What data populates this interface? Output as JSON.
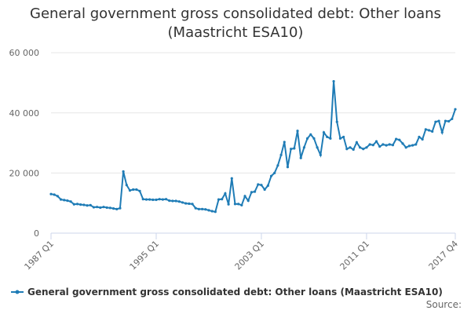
{
  "chart_data": {
    "type": "line",
    "title": "General government gross consolidated debt: Other loans (Maastricht ESA10)",
    "categories": [
      "1987 Q1",
      null,
      null,
      null,
      null,
      null,
      null,
      null,
      null,
      null,
      null,
      null,
      null,
      null,
      null,
      null,
      null,
      null,
      null,
      null,
      null,
      null,
      null,
      null,
      null,
      null,
      null,
      null,
      null,
      null,
      null,
      null,
      "1995 Q1",
      null,
      null,
      null,
      null,
      null,
      null,
      null,
      null,
      null,
      null,
      null,
      null,
      null,
      null,
      null,
      null,
      null,
      null,
      null,
      null,
      null,
      null,
      null,
      null,
      null,
      null,
      null,
      null,
      null,
      null,
      null,
      "2003 Q1",
      null,
      null,
      null,
      null,
      null,
      null,
      null,
      null,
      null,
      null,
      null,
      null,
      null,
      null,
      null,
      null,
      null,
      null,
      null,
      null,
      null,
      null,
      null,
      null,
      null,
      null,
      null,
      null,
      null,
      null,
      null,
      "2011 Q1",
      null,
      null,
      null,
      null,
      null,
      null,
      null,
      null,
      null,
      null,
      null,
      null,
      null,
      null,
      null,
      null,
      null,
      null,
      null,
      null,
      null,
      null,
      null,
      null,
      null,
      null,
      "2017 Q4"
    ],
    "series": [
      {
        "name": "General government gross consolidated debt: Other loans (Maastricht ESA10)",
        "color": "#1f7cb6",
        "values": [
          13000,
          12800,
          12300,
          11200,
          11000,
          10800,
          10500,
          9600,
          9700,
          9500,
          9400,
          9200,
          9300,
          8600,
          8700,
          8500,
          8700,
          8500,
          8400,
          8200,
          8000,
          8300,
          20500,
          16000,
          14200,
          14500,
          14500,
          14000,
          11300,
          11200,
          11200,
          11100,
          11100,
          11300,
          11200,
          11300,
          10800,
          10700,
          10700,
          10500,
          10200,
          9900,
          9800,
          9700,
          8300,
          8000,
          8000,
          7900,
          7600,
          7300,
          7100,
          11200,
          11300,
          13200,
          9600,
          18200,
          9700,
          9700,
          9300,
          12300,
          10800,
          13600,
          13800,
          16200,
          16000,
          14500,
          15800,
          19000,
          20000,
          22500,
          26000,
          30300,
          22000,
          28000,
          28200,
          34000,
          25000,
          28500,
          31500,
          32800,
          31500,
          28500,
          26000,
          33500,
          32000,
          31500,
          50500,
          37000,
          31500,
          32000,
          28000,
          28500,
          27800,
          30200,
          28500,
          28000,
          28500,
          29500,
          29300,
          30500,
          28800,
          29500,
          29200,
          29500,
          29300,
          31300,
          31000,
          29800,
          28500,
          29000,
          29200,
          29500,
          32000,
          31200,
          34500,
          34200,
          33800,
          37000,
          37300,
          33500,
          37300,
          37200,
          38000,
          41200
        ]
      }
    ],
    "ylim": [
      0,
      65000
    ],
    "yticks": [
      0,
      {
        "value": 20000,
        "label": "20 000"
      },
      {
        "value": 40000,
        "label": "40 000"
      },
      {
        "value": 60000,
        "label": "60 000"
      }
    ],
    "grid": true,
    "source_label": "Source:"
  }
}
